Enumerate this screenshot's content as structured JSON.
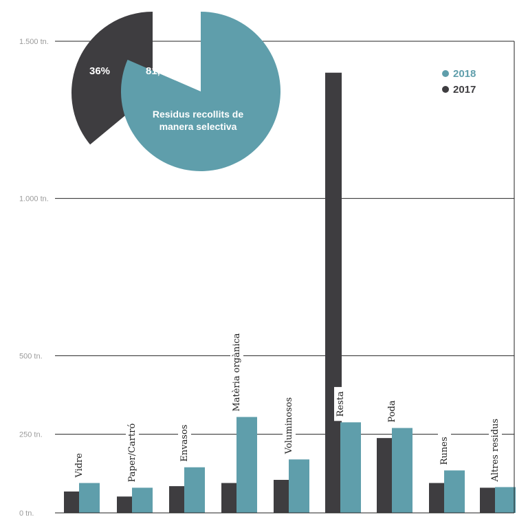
{
  "colors": {
    "2018": "#5f9eab",
    "2017": "#3e3d40",
    "axis": "#222222",
    "tick_text": "#9a9a9a"
  },
  "chart_data": [
    {
      "type": "bar",
      "categories": [
        "Vidre",
        "Paper/Cartró",
        "Envasos",
        "Matèria orgànica",
        "Voluminosos",
        "Resta",
        "Poda",
        "Runes",
        "Altres residus"
      ],
      "series": [
        {
          "name": "2017",
          "values": [
            68,
            52,
            85,
            95,
            105,
            1400,
            238,
            95,
            80
          ]
        },
        {
          "name": "2018",
          "values": [
            95,
            80,
            145,
            305,
            170,
            288,
            270,
            135,
            82
          ]
        }
      ],
      "ylim": [
        0,
        1500
      ],
      "yticks": [
        {
          "value": 0,
          "label": "0 tn."
        },
        {
          "value": 250,
          "label": "250 tn."
        },
        {
          "value": 500,
          "label": "500 tn."
        },
        {
          "value": 1000,
          "label": "1.000 tn."
        },
        {
          "value": 1500,
          "label": "1.500 tn."
        }
      ],
      "legend": [
        "2018",
        "2017"
      ],
      "legend_position": "top-right",
      "grid": true
    },
    {
      "type": "pie",
      "title": "Residus recollits de manera selectiva",
      "slices": [
        {
          "series": "2017",
          "value": 36,
          "label": "36%"
        },
        {
          "series": "2018",
          "value": 81.5,
          "label": "81,5%"
        }
      ]
    }
  ]
}
